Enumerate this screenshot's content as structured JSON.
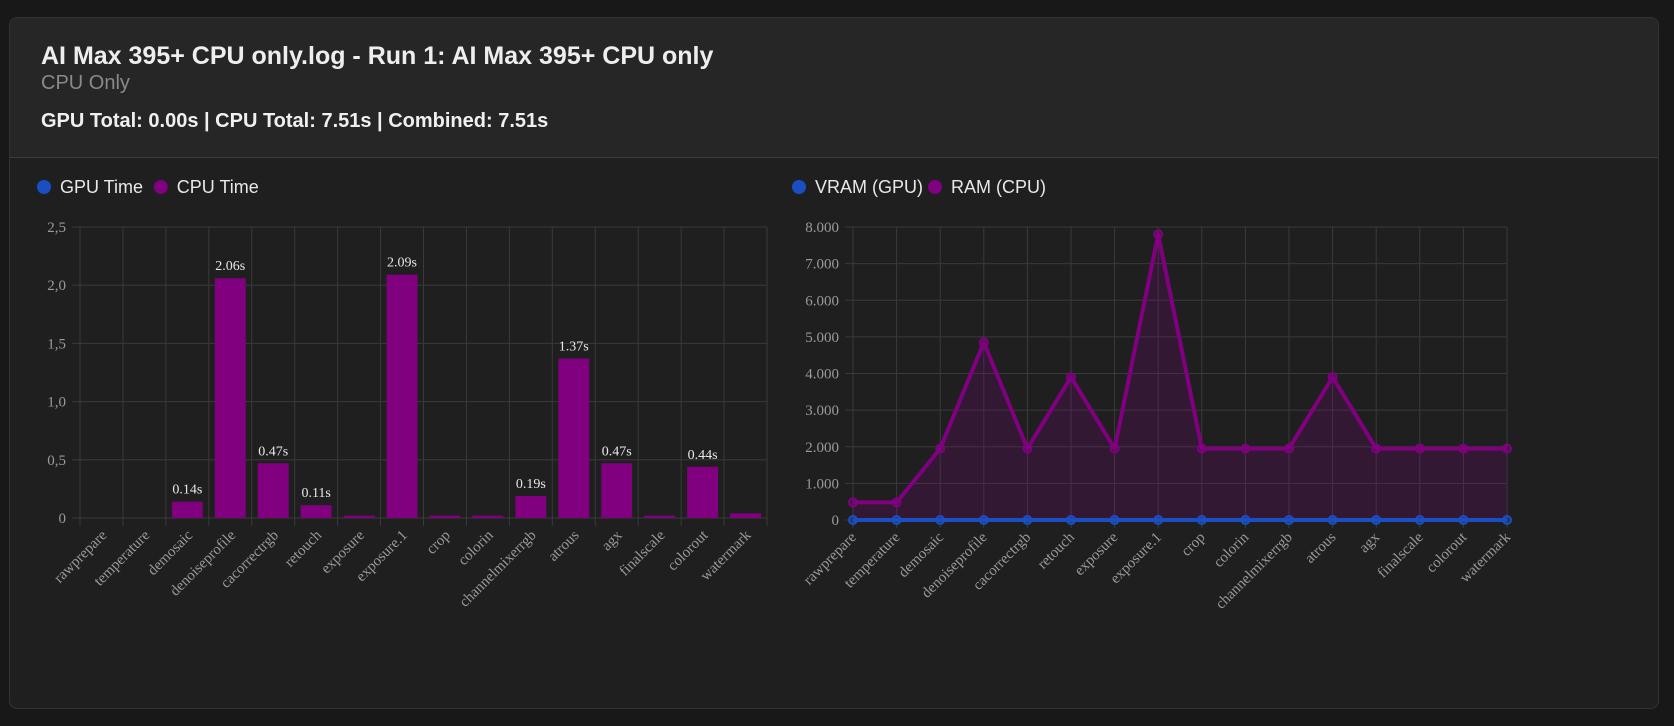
{
  "header": {
    "title": "AI Max 395+ CPU only.log - Run 1: AI Max 395+ CPU only",
    "subtitle": "CPU Only",
    "totals": "GPU Total: 0.00s | CPU Total: 7.51s | Combined: 7.51s"
  },
  "colors": {
    "gpu": "#1a4fc4",
    "cpu": "#800080",
    "grid": "#3a3a3a",
    "tick": "#9a9a9a",
    "label": "#e8e8e8"
  },
  "chart_data": [
    {
      "type": "bar",
      "title": "",
      "legend": [
        {
          "name": "GPU Time",
          "color": "#1a4fc4"
        },
        {
          "name": "CPU Time",
          "color": "#800080"
        }
      ],
      "categories": [
        "rawprepare",
        "temperature",
        "demosaic",
        "denoiseprofile",
        "cacorrectrgb",
        "retouch",
        "exposure",
        "exposure.1",
        "crop",
        "colorin",
        "channelmixerrgb",
        "atrous",
        "agx",
        "finalscale",
        "colorout",
        "watermark"
      ],
      "series": [
        {
          "name": "GPU Time",
          "values": [
            0,
            0,
            0,
            0,
            0,
            0,
            0,
            0,
            0,
            0,
            0,
            0,
            0,
            0,
            0,
            0
          ]
        },
        {
          "name": "CPU Time",
          "values": [
            0.0,
            0.0,
            0.14,
            2.06,
            0.47,
            0.11,
            0.02,
            2.09,
            0.02,
            0.02,
            0.19,
            1.37,
            0.47,
            0.02,
            0.44,
            0.04
          ]
        }
      ],
      "data_labels": [
        "",
        "",
        "0.14s",
        "2.06s",
        "0.47s",
        "0.11s",
        "",
        "2.09s",
        "",
        "",
        "0.19s",
        "1.37s",
        "0.47s",
        "",
        "0.44s",
        ""
      ],
      "ylim": [
        0,
        2.5
      ],
      "yticks": [
        0,
        0.5,
        1.0,
        1.5,
        2.0,
        2.5
      ],
      "ytick_labels": [
        "0",
        "0,5",
        "1,0",
        "1,5",
        "2,0",
        "2,5"
      ],
      "grid": true,
      "legend_position": "top-left"
    },
    {
      "type": "area",
      "title": "",
      "legend": [
        {
          "name": "VRAM (GPU)",
          "color": "#1a4fc4"
        },
        {
          "name": "RAM (CPU)",
          "color": "#800080"
        }
      ],
      "categories": [
        "rawprepare",
        "temperature",
        "demosaic",
        "denoiseprofile",
        "cacorrectrgb",
        "retouch",
        "exposure",
        "exposure.1",
        "crop",
        "colorin",
        "channelmixerrgb",
        "atrous",
        "agx",
        "finalscale",
        "colorout",
        "watermark"
      ],
      "series": [
        {
          "name": "VRAM (GPU)",
          "values": [
            0,
            0,
            0,
            0,
            0,
            0,
            0,
            0,
            0,
            0,
            0,
            0,
            0,
            0,
            0,
            0
          ]
        },
        {
          "name": "RAM (CPU)",
          "values": [
            480,
            480,
            1950,
            4850,
            1950,
            3900,
            1950,
            7800,
            1950,
            1950,
            1950,
            3900,
            1950,
            1950,
            1950,
            1950
          ]
        }
      ],
      "ylim": [
        0,
        8000
      ],
      "yticks": [
        0,
        1000,
        2000,
        3000,
        4000,
        5000,
        6000,
        7000,
        8000
      ],
      "ytick_labels": [
        "0",
        "1.000",
        "2.000",
        "3.000",
        "4.000",
        "5.000",
        "6.000",
        "7.000",
        "8.000"
      ],
      "grid": true,
      "legend_position": "top-left"
    }
  ]
}
